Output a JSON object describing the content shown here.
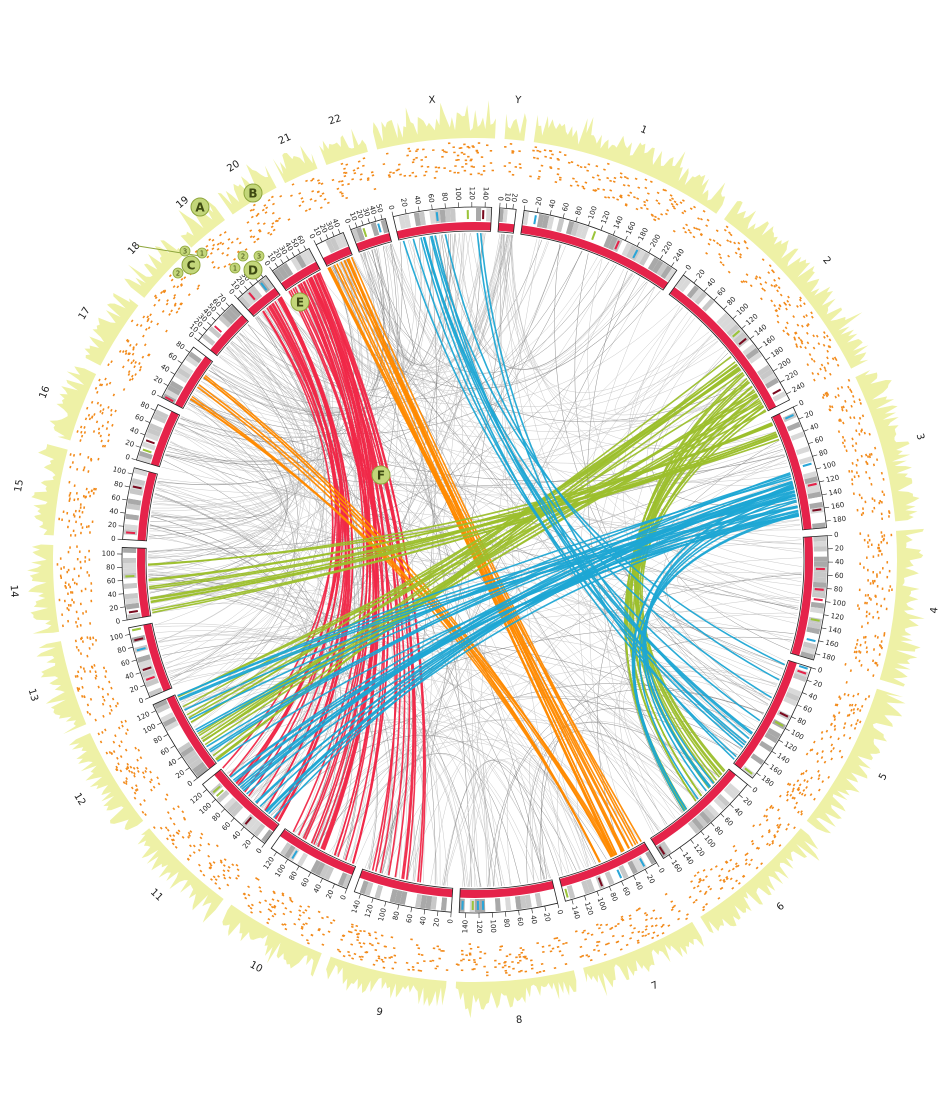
{
  "chromosomes": [
    {
      "label": "1",
      "ticks": [
        0,
        20,
        40,
        60,
        80,
        100,
        120,
        140,
        160,
        180,
        200,
        220,
        240
      ]
    },
    {
      "label": "2",
      "ticks": [
        0,
        20,
        40,
        60,
        80,
        100,
        120,
        140,
        160,
        180,
        200,
        220,
        240
      ]
    },
    {
      "label": "3",
      "ticks": [
        0,
        20,
        40,
        60,
        80,
        100,
        120,
        140,
        160,
        180
      ]
    },
    {
      "label": "4",
      "ticks": [
        0,
        20,
        40,
        60,
        80,
        100,
        120,
        140,
        160,
        180
      ]
    },
    {
      "label": "5",
      "ticks": [
        0,
        20,
        40,
        60,
        80,
        100,
        120,
        140,
        160,
        180
      ]
    },
    {
      "label": "6",
      "ticks": [
        0,
        20,
        40,
        60,
        80,
        100,
        120,
        140,
        160
      ]
    },
    {
      "label": "7",
      "ticks": [
        0,
        20,
        40,
        60,
        80,
        100,
        120,
        140
      ]
    },
    {
      "label": "8",
      "ticks": [
        0,
        20,
        40,
        60,
        80,
        100,
        120,
        140
      ]
    },
    {
      "label": "9",
      "ticks": [
        0,
        20,
        40,
        60,
        80,
        100,
        120,
        140
      ]
    },
    {
      "label": "10",
      "ticks": [
        0,
        20,
        40,
        60,
        80,
        100,
        120
      ]
    },
    {
      "label": "11",
      "ticks": [
        0,
        20,
        40,
        60,
        80,
        100,
        120
      ]
    },
    {
      "label": "12",
      "ticks": [
        0,
        20,
        40,
        60,
        80,
        100,
        120
      ]
    },
    {
      "label": "13",
      "ticks": [
        0,
        20,
        40,
        60,
        80,
        100
      ]
    },
    {
      "label": "14",
      "ticks": [
        0,
        20,
        40,
        60,
        80,
        100
      ]
    },
    {
      "label": "15",
      "ticks": [
        0,
        20,
        40,
        60,
        80,
        100
      ]
    },
    {
      "label": "16",
      "ticks": [
        0,
        20,
        40,
        60,
        80
      ]
    },
    {
      "label": "17",
      "ticks": [
        0,
        20,
        40,
        60,
        80
      ]
    },
    {
      "label": "18",
      "ticks": [
        0,
        10,
        20,
        30,
        40,
        50,
        60,
        70
      ]
    },
    {
      "label": "19",
      "ticks": [
        0,
        10,
        20,
        30,
        40,
        50
      ]
    },
    {
      "label": "20",
      "ticks": [
        0,
        10,
        20,
        30,
        40,
        50,
        60
      ]
    },
    {
      "label": "21",
      "ticks": [
        0,
        10,
        20,
        30,
        40
      ]
    },
    {
      "label": "22",
      "ticks": [
        0,
        10,
        20,
        30,
        40,
        50
      ]
    },
    {
      "label": "X",
      "ticks": [
        0,
        20,
        40,
        60,
        80,
        100,
        120,
        140
      ]
    },
    {
      "label": "Y",
      "ticks": [
        0,
        10,
        20
      ]
    }
  ],
  "markers": [
    {
      "label": "A"
    },
    {
      "label": "B"
    },
    {
      "label": "C",
      "parts": [
        "1",
        "2",
        "3"
      ]
    },
    {
      "label": "D",
      "parts": [
        "1",
        "2",
        "3"
      ]
    },
    {
      "label": "E"
    },
    {
      "label": "F"
    }
  ]
}
